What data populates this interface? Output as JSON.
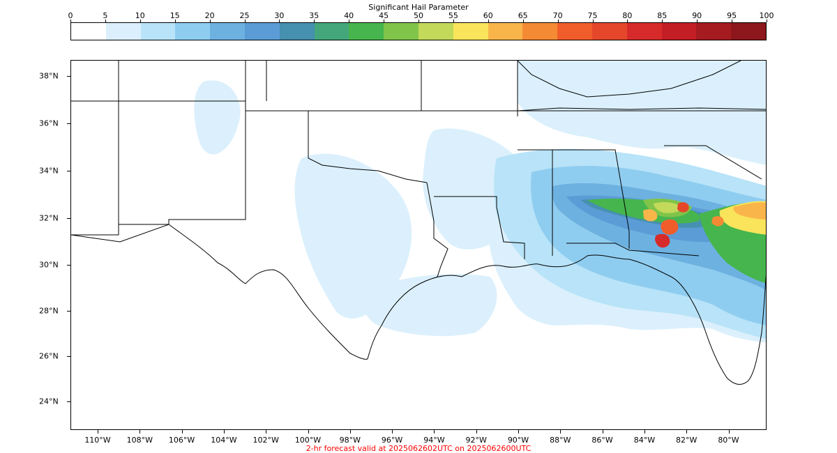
{
  "colorbar": {
    "title": "Significant Hail Parameter",
    "ticks": [
      "0",
      "5",
      "10",
      "15",
      "20",
      "25",
      "30",
      "35",
      "40",
      "45",
      "50",
      "55",
      "60",
      "65",
      "70",
      "75",
      "80",
      "85",
      "90",
      "95",
      "100"
    ],
    "colors": [
      "#ffffff",
      "#dbf0fc",
      "#b8e3f8",
      "#8fcdf0",
      "#6db1e0",
      "#5b9cd6",
      "#4690b0",
      "#44a77b",
      "#46b54d",
      "#80c44a",
      "#c3d95a",
      "#f9e45b",
      "#f9b54a",
      "#f58a34",
      "#f05d2b",
      "#e4472a",
      "#d72a2a",
      "#c31e25",
      "#a51b20",
      "#8d171c"
    ]
  },
  "map": {
    "lat_labels": [
      "38°N",
      "36°N",
      "34°N",
      "32°N",
      "30°N",
      "28°N",
      "26°N",
      "24°N"
    ],
    "lon_labels": [
      "110°W",
      "108°W",
      "106°W",
      "104°W",
      "102°W",
      "100°W",
      "98°W",
      "96°W",
      "94°W",
      "92°W",
      "90°W",
      "88°W",
      "86°W",
      "84°W",
      "82°W",
      "80°W"
    ],
    "caption": "2-hr forecast valid at 2025062602UTC on 2025062600UTC"
  }
}
